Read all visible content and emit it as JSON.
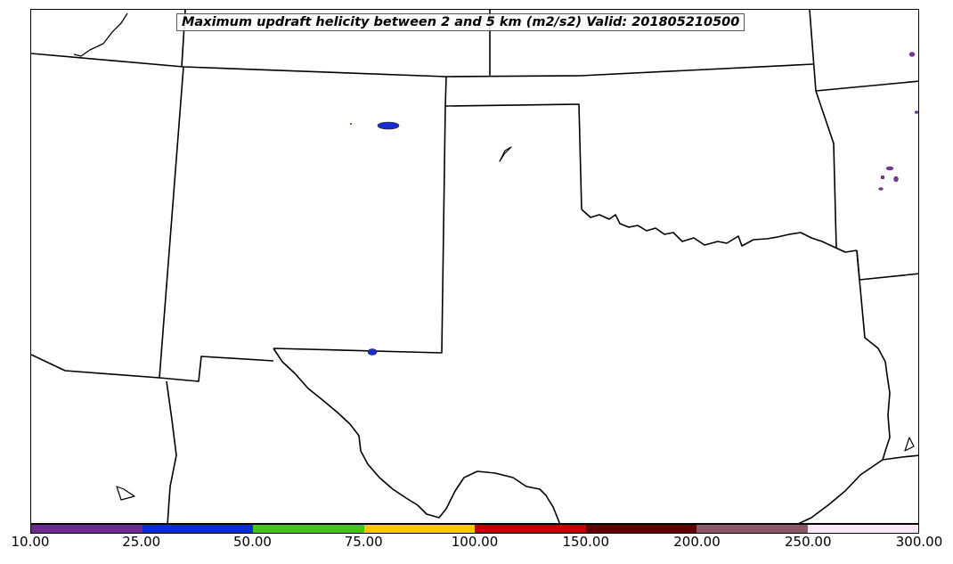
{
  "title": "Maximum updraft helicity between 2 and 5 km (m2/s2) Valid: 201805210500",
  "colorbar": {
    "ticks": [
      "10.00",
      "25.00",
      "50.00",
      "75.00",
      "100.00",
      "150.00",
      "200.00",
      "250.00",
      "300.00"
    ],
    "colors": [
      "#6a2a8f",
      "#0a2fd0",
      "#44c41a",
      "#ffc800",
      "#c00000",
      "#5e0000",
      "#8b5868",
      "#fce6fa"
    ]
  },
  "features": {
    "storm_colors": {
      "purple": "#7a34a0",
      "blue": "#1a2ed0"
    }
  }
}
